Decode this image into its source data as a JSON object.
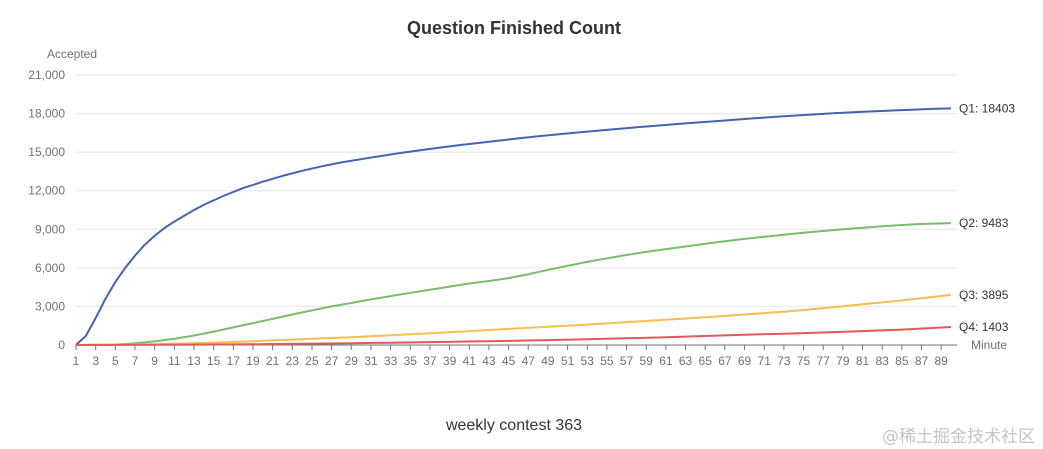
{
  "chart_data": {
    "type": "line",
    "title": "Question Finished Count",
    "ylabel": "Accepted",
    "xlabel": "Minute",
    "ylim": [
      0,
      21000
    ],
    "y_ticks": [
      "0",
      "3,000",
      "6,000",
      "9,000",
      "12,000",
      "15,000",
      "18,000",
      "21,000"
    ],
    "x_range": [
      1,
      90
    ],
    "x_ticks": [
      "1",
      "3",
      "5",
      "7",
      "9",
      "11",
      "13",
      "15",
      "17",
      "19",
      "21",
      "23",
      "25",
      "27",
      "29",
      "31",
      "33",
      "35",
      "37",
      "39",
      "41",
      "43",
      "45",
      "47",
      "49",
      "51",
      "53",
      "55",
      "57",
      "59",
      "61",
      "63",
      "65",
      "67",
      "69",
      "71",
      "73",
      "75",
      "77",
      "79",
      "81",
      "83",
      "85",
      "87",
      "89"
    ],
    "grid": true,
    "caption": "weekly contest 363",
    "series": [
      {
        "name": "Q1",
        "end_label": "Q1: 18403",
        "color": "#4463b0",
        "x": [
          1,
          2,
          3,
          4,
          5,
          6,
          7,
          8,
          9,
          10,
          11,
          12,
          13,
          14,
          15,
          16,
          17,
          18,
          19,
          20,
          22,
          24,
          26,
          28,
          30,
          32,
          34,
          36,
          38,
          40,
          42,
          44,
          46,
          48,
          50,
          52,
          54,
          56,
          58,
          60,
          62,
          64,
          66,
          68,
          70,
          72,
          74,
          76,
          78,
          80,
          82,
          84,
          86,
          88,
          90
        ],
        "values": [
          0,
          700,
          2100,
          3600,
          4900,
          6000,
          6950,
          7800,
          8500,
          9100,
          9600,
          10050,
          10500,
          10900,
          11250,
          11600,
          11900,
          12200,
          12450,
          12700,
          13150,
          13550,
          13900,
          14200,
          14450,
          14700,
          14930,
          15150,
          15350,
          15550,
          15720,
          15900,
          16070,
          16230,
          16380,
          16530,
          16670,
          16800,
          16930,
          17060,
          17180,
          17300,
          17410,
          17520,
          17630,
          17740,
          17840,
          17930,
          18020,
          18100,
          18170,
          18240,
          18300,
          18360,
          18403
        ]
      },
      {
        "name": "Q2",
        "end_label": "Q2: 9483",
        "color": "#78be6a",
        "x": [
          1,
          5,
          7,
          9,
          11,
          13,
          15,
          17,
          19,
          21,
          23,
          25,
          27,
          29,
          31,
          33,
          35,
          37,
          39,
          41,
          43,
          45,
          47,
          49,
          51,
          53,
          55,
          57,
          59,
          61,
          63,
          65,
          67,
          69,
          71,
          73,
          75,
          77,
          79,
          81,
          83,
          85,
          87,
          90
        ],
        "values": [
          0,
          30,
          130,
          280,
          480,
          740,
          1040,
          1370,
          1700,
          2030,
          2370,
          2690,
          3000,
          3270,
          3550,
          3800,
          4060,
          4300,
          4540,
          4780,
          4980,
          5200,
          5500,
          5840,
          6160,
          6460,
          6740,
          7000,
          7240,
          7460,
          7660,
          7870,
          8070,
          8250,
          8420,
          8580,
          8730,
          8870,
          9000,
          9120,
          9230,
          9330,
          9410,
          9483
        ]
      },
      {
        "name": "Q3",
        "end_label": "Q3: 3895",
        "color": "#f5be4f",
        "x": [
          1,
          5,
          9,
          13,
          17,
          21,
          25,
          29,
          33,
          37,
          41,
          45,
          49,
          53,
          57,
          61,
          65,
          69,
          73,
          77,
          81,
          85,
          90
        ],
        "values": [
          0,
          20,
          60,
          130,
          230,
          360,
          480,
          600,
          760,
          920,
          1080,
          1250,
          1420,
          1590,
          1780,
          1970,
          2160,
          2370,
          2590,
          2860,
          3170,
          3460,
          3895
        ]
      },
      {
        "name": "Q4",
        "end_label": "Q4: 1403",
        "color": "#e05a5a",
        "x": [
          1,
          5,
          9,
          13,
          17,
          21,
          25,
          29,
          33,
          37,
          41,
          45,
          49,
          53,
          57,
          61,
          65,
          69,
          73,
          77,
          81,
          85,
          90
        ],
        "values": [
          0,
          5,
          15,
          30,
          50,
          75,
          105,
          140,
          180,
          225,
          270,
          320,
          380,
          440,
          520,
          610,
          700,
          790,
          880,
          970,
          1080,
          1200,
          1403
        ]
      }
    ]
  },
  "watermark": "@稀土掘金技术社区"
}
